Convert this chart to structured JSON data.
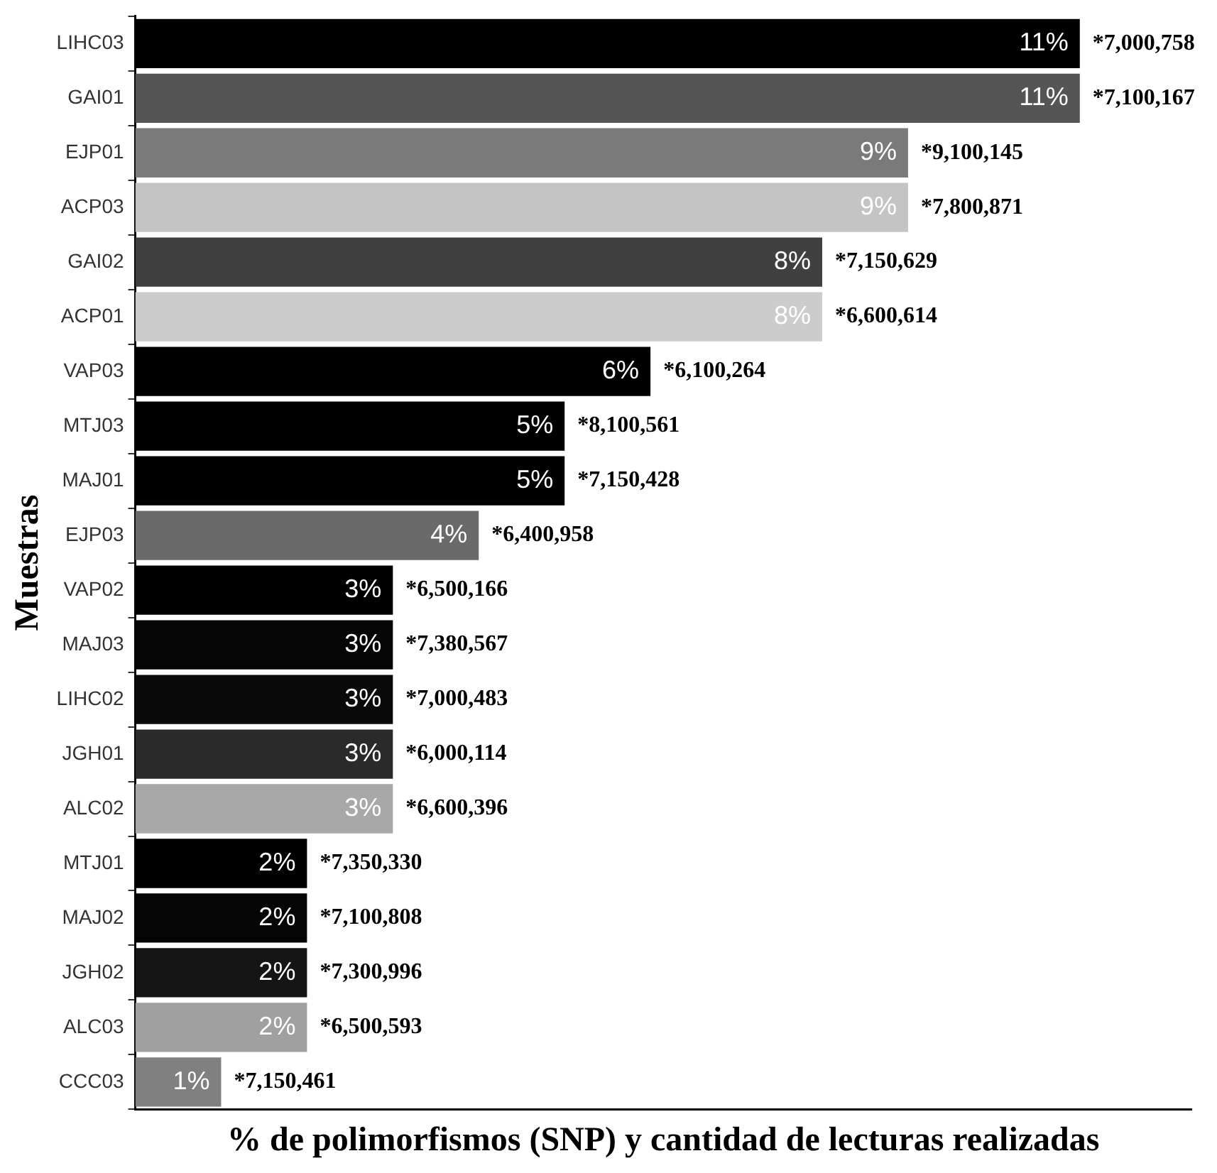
{
  "chart_data": {
    "type": "bar",
    "orientation": "horizontal",
    "xlabel": "% de polimorfismos (SNP) y cantidad de lecturas realizadas",
    "ylabel": "Muestras",
    "categories": [
      "LIHC03",
      "GAI01",
      "EJP01",
      "ACP03",
      "GAI02",
      "ACP01",
      "VAP03",
      "MTJ03",
      "MAJ01",
      "EJP03",
      "VAP02",
      "MAJ03",
      "LIHC02",
      "JGH01",
      "ALC02",
      "MTJ01",
      "MAJ02",
      "JGH02",
      "ALC03",
      "CCC03"
    ],
    "values": [
      11,
      11,
      9,
      9,
      8,
      8,
      6,
      5,
      5,
      4,
      3,
      3,
      3,
      3,
      3,
      2,
      2,
      2,
      2,
      1
    ],
    "value_labels": [
      "11%",
      "11%",
      "9%",
      "9%",
      "8%",
      "8%",
      "6%",
      "5%",
      "5%",
      "4%",
      "3%",
      "3%",
      "3%",
      "3%",
      "3%",
      "2%",
      "2%",
      "2%",
      "2%",
      "1%"
    ],
    "colors": [
      "#000000",
      "#555555",
      "#7a7a7a",
      "#c4c4c4",
      "#404040",
      "#cccccc",
      "#000000",
      "#000000",
      "#000000",
      "#6a6a6a",
      "#000000",
      "#050505",
      "#0a0a0a",
      "#2a2a2a",
      "#a8a8a8",
      "#000000",
      "#050505",
      "#151515",
      "#a0a0a0",
      "#808080"
    ],
    "xlim": [
      0,
      12.3
    ],
    "tick_labels": "y",
    "grid": false,
    "legend": false,
    "annotations": [
      {
        "text": "*7,000,758",
        "x": 11,
        "y": "LIHC03"
      },
      {
        "text": "*7,100,167",
        "x": 11,
        "y": "GAI01"
      },
      {
        "text": "*9,100,145",
        "x": 9,
        "y": "EJP01"
      },
      {
        "text": "*7,800,871",
        "x": 9,
        "y": "ACP03"
      },
      {
        "text": "*7,150,629",
        "x": 8,
        "y": "GAI02"
      },
      {
        "text": "*6,600,614",
        "x": 8,
        "y": "ACP01"
      },
      {
        "text": "*6,100,264",
        "x": 6,
        "y": "VAP03"
      },
      {
        "text": "*8,100,561",
        "x": 5,
        "y": "MTJ03"
      },
      {
        "text": "*7,150,428",
        "x": 5,
        "y": "MAJ01"
      },
      {
        "text": "*6,400,958",
        "x": 4,
        "y": "EJP03"
      },
      {
        "text": "*6,500,166",
        "x": 3,
        "y": "VAP02"
      },
      {
        "text": "*7,380,567",
        "x": 3,
        "y": "MAJ03"
      },
      {
        "text": "*7,000,483",
        "x": 3,
        "y": "LIHC02"
      },
      {
        "text": "*6,000,114",
        "x": 3,
        "y": "JGH01"
      },
      {
        "text": "*6,600,396",
        "x": 3,
        "y": "ALC02"
      },
      {
        "text": "*7,350,330",
        "x": 2,
        "y": "MTJ01"
      },
      {
        "text": "*7,100,808",
        "x": 2,
        "y": "MAJ02"
      },
      {
        "text": "*7,300,996",
        "x": 2,
        "y": "JGH02"
      },
      {
        "text": "*6,500,593",
        "x": 2,
        "y": "ALC03"
      },
      {
        "text": "*7,150,461",
        "x": 1,
        "y": "CCC03"
      }
    ]
  }
}
